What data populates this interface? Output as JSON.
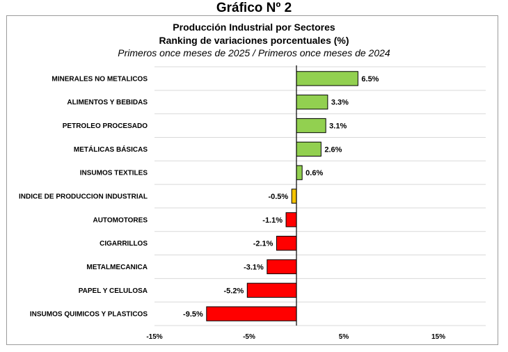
{
  "page_title": "Gráfico Nº 2",
  "chart_data": {
    "type": "bar",
    "orientation": "horizontal",
    "title": "Producción Industrial por Sectores",
    "subtitle": "Ranking de variaciones porcentuales (%)",
    "subtitle2": "Primeros once meses de 2025 / Primeros once meses de 2024",
    "categories": [
      "MINERALES NO METALICOS",
      "ALIMENTOS Y BEBIDAS",
      "PETROLEO PROCESADO",
      "METÁLICAS BÁSICAS",
      "INSUMOS TEXTILES",
      "INDICE DE PRODUCCION INDUSTRIAL",
      "AUTOMOTORES",
      "CIGARRILLOS",
      "METALMECANICA",
      "PAPEL Y CELULOSA",
      "INSUMOS QUIMICOS Y PLASTICOS"
    ],
    "values": [
      6.5,
      3.3,
      3.1,
      2.6,
      0.6,
      -0.5,
      -1.1,
      -2.1,
      -3.1,
      -5.2,
      -9.5
    ],
    "value_labels": [
      "6.5%",
      "3.3%",
      "3.1%",
      "2.6%",
      "0.6%",
      "-0.5%",
      "-1.1%",
      "-2.1%",
      "-3.1%",
      "-5.2%",
      "-9.5%"
    ],
    "bar_colors": [
      "#92d050",
      "#92d050",
      "#92d050",
      "#92d050",
      "#92d050",
      "#f5c300",
      "#ff0000",
      "#ff0000",
      "#ff0000",
      "#ff0000",
      "#ff0000"
    ],
    "xlim": [
      -15,
      20
    ],
    "xticks": [
      -15,
      -5,
      5,
      15
    ],
    "xtick_labels": [
      "-15%",
      "-5%",
      "5%",
      "15%"
    ],
    "grid": "horizontal",
    "legend": "none"
  }
}
